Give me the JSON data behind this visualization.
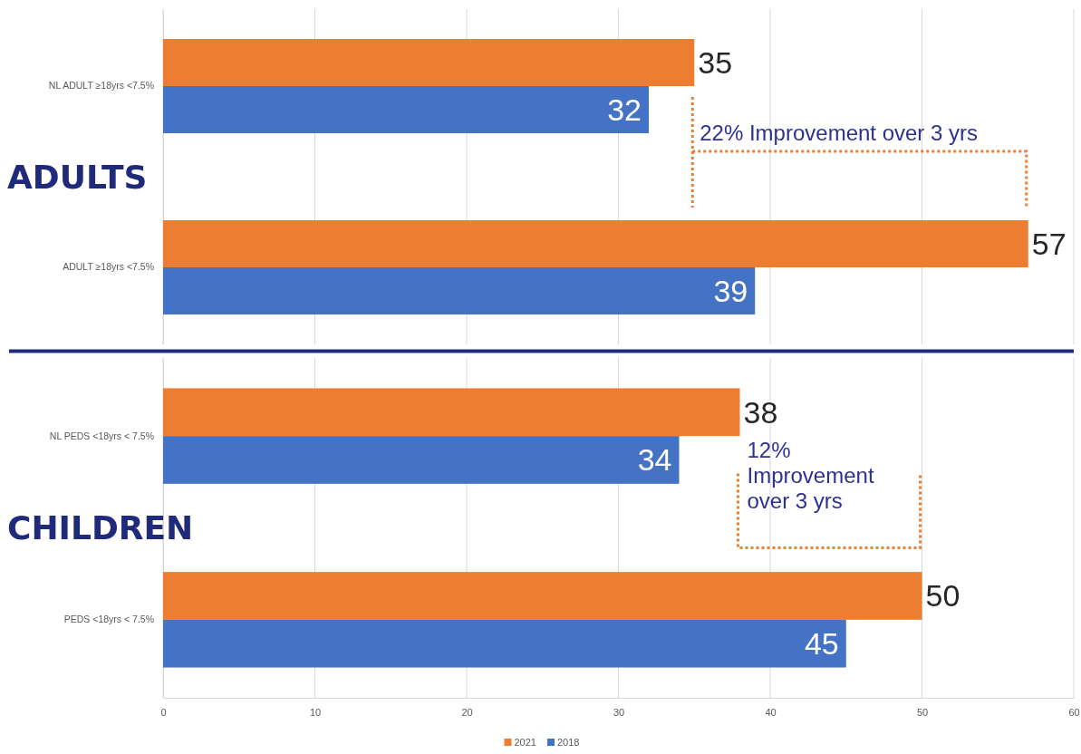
{
  "chart_data": [
    {
      "type": "bar",
      "orientation": "horizontal",
      "categories": [
        "NL ADULT ≥18yrs <7.5%",
        "ADULT ≥18yrs <7.5%"
      ],
      "series": [
        {
          "color": "#ed7d31",
          "values": [
            35,
            57
          ]
        },
        {
          "color": "#4472c4",
          "values": [
            32,
            39
          ]
        }
      ],
      "xlim": [
        0,
        60
      ],
      "xticks": [
        0,
        10,
        20,
        30,
        40,
        50,
        60
      ],
      "tick_labels": "y",
      "grid": "x",
      "data_labels": true,
      "annotations": [
        "ADULTS",
        "22% Improvement over 3 yrs"
      ]
    },
    {
      "type": "bar",
      "orientation": "horizontal",
      "categories": [
        "NL PEDS <18yrs < 7.5%",
        "PEDS <18yrs < 7.5%"
      ],
      "series": [
        {
          "name": "2021",
          "color": "#ed7d31",
          "values": [
            38,
            50
          ]
        },
        {
          "name": "2018",
          "color": "#4472c4",
          "values": [
            34,
            45
          ]
        }
      ],
      "xlim": [
        0,
        60
      ],
      "xticks": [
        0,
        10,
        20,
        30,
        40,
        50,
        60
      ],
      "grid": "x",
      "legend": "bottom",
      "data_labels": true,
      "annotations": [
        "CHILDREN",
        "12% Improvement over 3 yrs"
      ]
    }
  ]
}
